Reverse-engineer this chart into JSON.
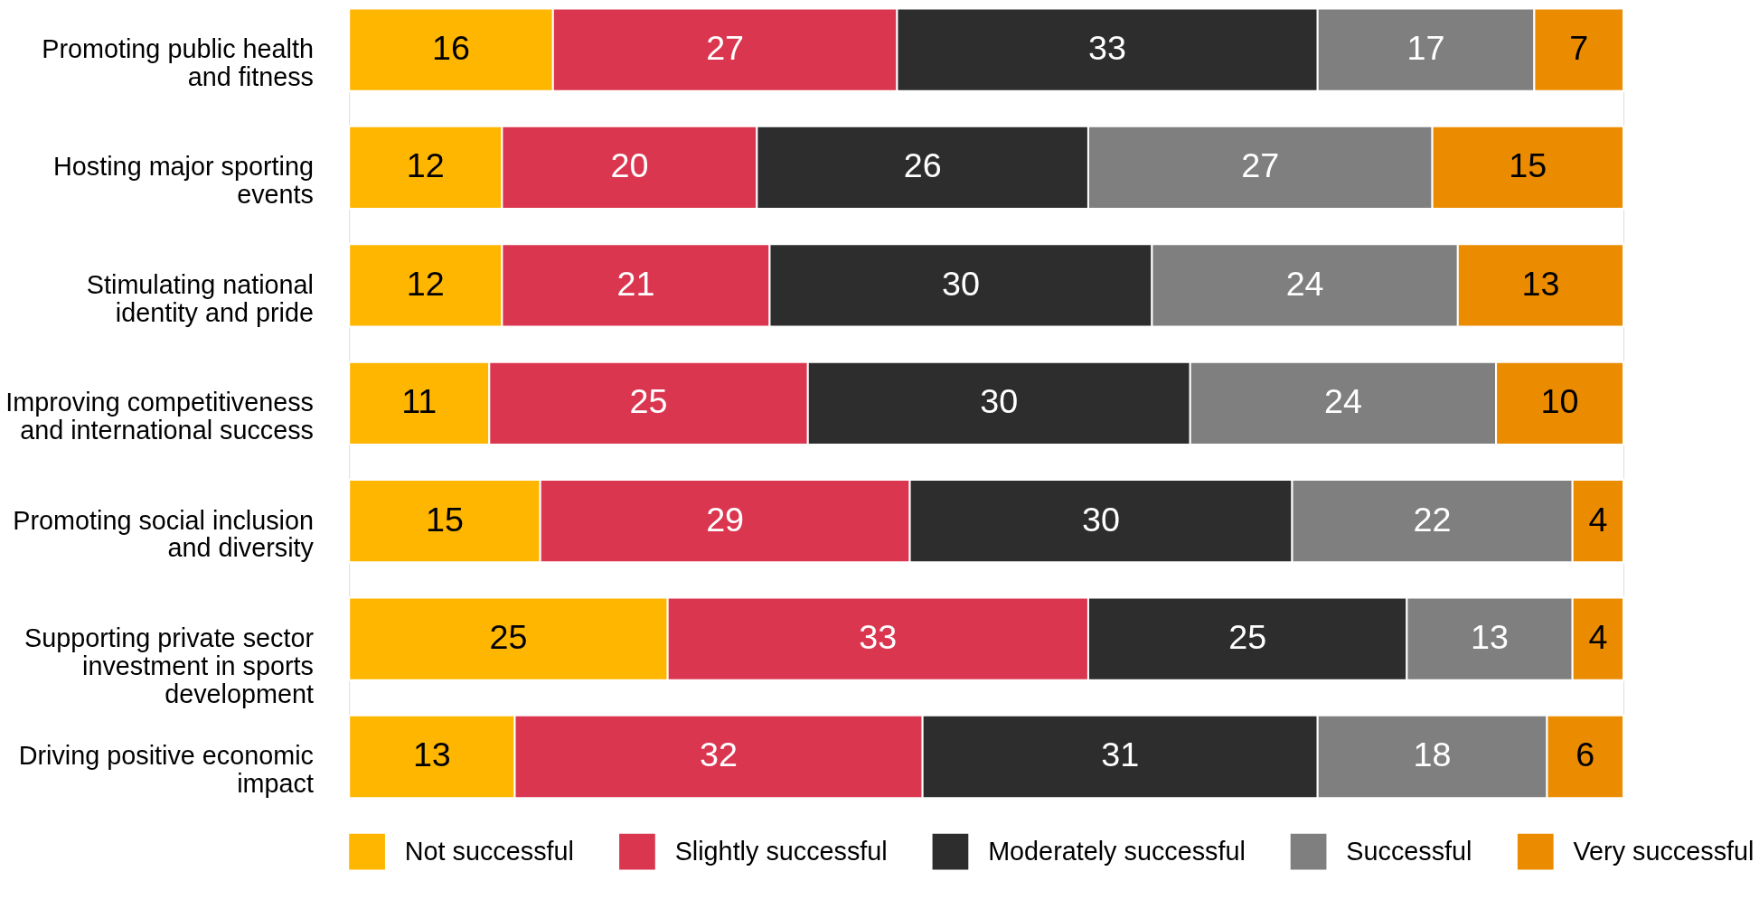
{
  "chart_data": {
    "type": "bar",
    "orientation": "horizontal",
    "stacked": true,
    "data_labels": true,
    "legend": "bottom",
    "tick_labels": "y",
    "xlim": [
      0,
      100
    ],
    "categories": [
      "Promoting public health and fitness",
      "Hosting major sporting events",
      "Stimulating national identity and pride",
      "Improving competitiveness and international success",
      "Promoting social inclusion and diversity",
      "Supporting private sector investment in sports development",
      "Driving positive economic impact"
    ],
    "series": [
      {
        "name": "Not successful",
        "color": "#ffb600",
        "values": [
          16,
          12,
          12,
          11,
          15,
          25,
          13
        ]
      },
      {
        "name": "Slightly successful",
        "color": "#db3650",
        "values": [
          27,
          20,
          21,
          25,
          29,
          33,
          32
        ]
      },
      {
        "name": "Moderately successful",
        "color": "#2d2d2d",
        "values": [
          33,
          26,
          30,
          30,
          30,
          25,
          31
        ]
      },
      {
        "name": "Successful",
        "color": "#7f7f7f",
        "values": [
          17,
          27,
          24,
          24,
          22,
          13,
          18
        ]
      },
      {
        "name": "Very successful",
        "color": "#eb8c00",
        "values": [
          7,
          15,
          13,
          10,
          4,
          4,
          6
        ]
      }
    ]
  }
}
